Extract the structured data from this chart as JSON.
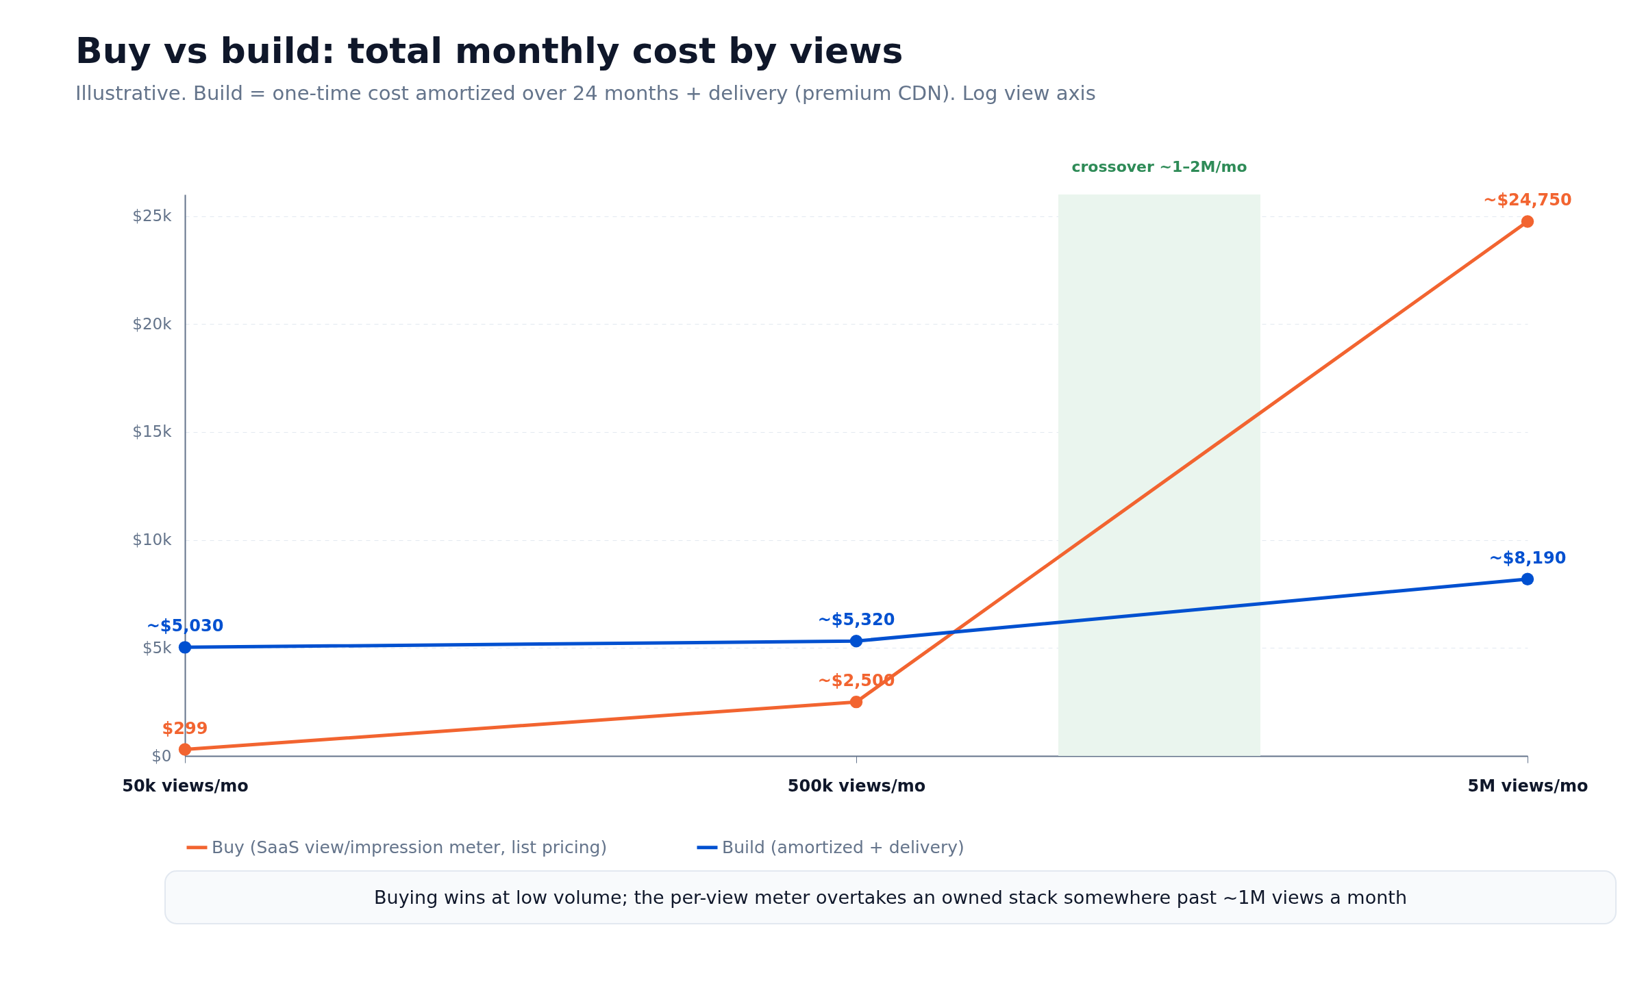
{
  "chart_data": {
    "type": "line",
    "title": "Buy vs build: total monthly cost by views",
    "subtitle": "Illustrative. Build = one-time cost amortized over 24 months + delivery (premium CDN). Log view axis",
    "x": [
      50000,
      500000,
      5000000
    ],
    "series": [
      {
        "name": "Buy (SaaS view/impression meter, list pricing)",
        "color": "#f26430",
        "values": [
          299,
          2500,
          24750
        ],
        "value_labels": [
          "$299",
          "~$2,500",
          "~$24,750"
        ]
      },
      {
        "name": "Build (amortized + delivery)",
        "color": "#0050d0",
        "values": [
          5030,
          5320,
          8190
        ],
        "value_labels": [
          "~$5,030",
          "~$5,320",
          "~$8,190"
        ]
      }
    ],
    "log": "x",
    "xlim": [
      50000,
      5000000
    ],
    "xticks": [
      {
        "value": 50000,
        "label": "50k views/mo"
      },
      {
        "value": 500000,
        "label": "500k views/mo"
      },
      {
        "value": 5000000,
        "label": "5M views/mo"
      }
    ],
    "ylim": [
      0,
      26000
    ],
    "yticks": [
      {
        "value": 0,
        "label": "$0"
      },
      {
        "value": 5000,
        "label": "$5k"
      },
      {
        "value": 10000,
        "label": "$10k"
      },
      {
        "value": 15000,
        "label": "$15k"
      },
      {
        "value": 20000,
        "label": "$20k"
      },
      {
        "value": 25000,
        "label": "$25k"
      }
    ],
    "bands": [
      {
        "axis": "x",
        "from": 1000000,
        "to": 2000000,
        "label": "crossover ~1–2M/mo",
        "color": "#eaf5ee"
      }
    ],
    "annotations": [
      "Buying wins at low volume; the per-view meter overtakes an owned stack somewhere past ~1M views a month"
    ],
    "grid": "y",
    "legend": "bottom",
    "marker": "circle",
    "line_style": "solid"
  }
}
